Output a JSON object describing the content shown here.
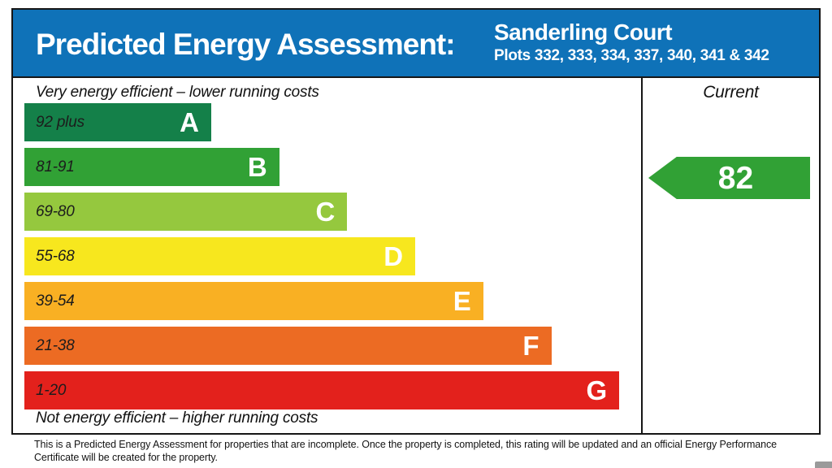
{
  "banner": {
    "title": "Predicted Energy Assessment:",
    "property_name": "Sanderling Court",
    "plots": "Plots 332, 333, 334, 337, 340, 341 & 342",
    "background_color": "#0f72b8"
  },
  "chart_data": {
    "type": "bar",
    "title": "Predicted Energy Assessment",
    "top_caption": "Very energy efficient – lower running costs",
    "bottom_caption": "Not energy efficient – higher running costs",
    "column_header": "Current",
    "bands": [
      {
        "letter": "A",
        "label": "92 plus",
        "min": 92,
        "max": 100,
        "color": "#148049"
      },
      {
        "letter": "B",
        "label": "81-91",
        "min": 81,
        "max": 91,
        "color": "#31a135"
      },
      {
        "letter": "C",
        "label": "69-80",
        "min": 69,
        "max": 80,
        "color": "#95c83e"
      },
      {
        "letter": "D",
        "label": "55-68",
        "min": 55,
        "max": 68,
        "color": "#f7e71e"
      },
      {
        "letter": "E",
        "label": "39-54",
        "min": 39,
        "max": 54,
        "color": "#f9b023"
      },
      {
        "letter": "F",
        "label": "21-38",
        "min": 21,
        "max": 38,
        "color": "#ec6b23"
      },
      {
        "letter": "G",
        "label": "1-20",
        "min": 1,
        "max": 20,
        "color": "#e3211c"
      }
    ],
    "current": {
      "value": 82,
      "arrow_color": "#31a135"
    }
  },
  "footer": {
    "text": "This is a Predicted Energy Assessment for properties that are incomplete. Once the property is completed, this rating will be updated and an official Energy Performance Certificate will be created for the property."
  }
}
